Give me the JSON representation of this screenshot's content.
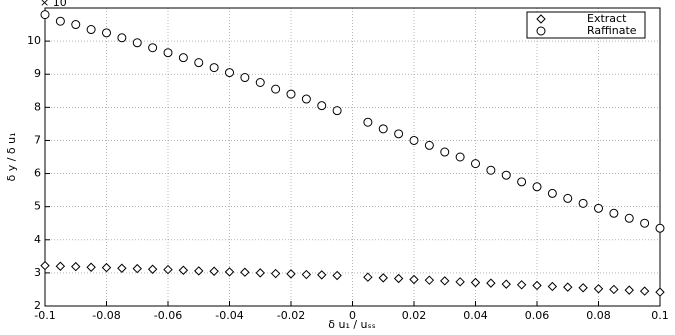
{
  "chart_data": {
    "type": "scatter",
    "multiplier_label": "× 10",
    "xlabel": "δ u₁ / uₛₛ",
    "ylabel": "δ y / δ u₁",
    "x": [
      -0.1,
      -0.095,
      -0.09,
      -0.085,
      -0.08,
      -0.075,
      -0.07,
      -0.065,
      -0.06,
      -0.055,
      -0.05,
      -0.045,
      -0.04,
      -0.035,
      -0.03,
      -0.025,
      -0.02,
      -0.015,
      -0.01,
      -0.005,
      0.005,
      0.01,
      0.015,
      0.02,
      0.025,
      0.03,
      0.035,
      0.04,
      0.045,
      0.05,
      0.055,
      0.06,
      0.065,
      0.07,
      0.075,
      0.08,
      0.085,
      0.09,
      0.095,
      0.1
    ],
    "series": [
      {
        "name": "Extract",
        "marker": "diamond",
        "color": "#000000",
        "values": [
          3.22,
          3.2,
          3.19,
          3.17,
          3.16,
          3.14,
          3.13,
          3.11,
          3.1,
          3.08,
          3.06,
          3.05,
          3.03,
          3.02,
          3.0,
          2.98,
          2.97,
          2.95,
          2.94,
          2.92,
          2.87,
          2.85,
          2.83,
          2.8,
          2.78,
          2.76,
          2.73,
          2.71,
          2.69,
          2.66,
          2.64,
          2.62,
          2.59,
          2.57,
          2.55,
          2.52,
          2.5,
          2.48,
          2.45,
          2.42
        ]
      },
      {
        "name": "Raffinate",
        "marker": "circle",
        "color": "#000000",
        "values": [
          10.8,
          10.6,
          10.5,
          10.35,
          10.25,
          10.1,
          9.95,
          9.8,
          9.65,
          9.5,
          9.35,
          9.2,
          9.05,
          8.9,
          8.75,
          8.55,
          8.4,
          8.25,
          8.05,
          7.9,
          7.55,
          7.35,
          7.2,
          7.0,
          6.85,
          6.65,
          6.5,
          6.3,
          6.1,
          5.95,
          5.75,
          5.6,
          5.4,
          5.25,
          5.1,
          4.95,
          4.8,
          4.65,
          4.5,
          4.35
        ]
      }
    ],
    "xlim": [
      -0.1,
      0.1
    ],
    "xticks": [
      -0.1,
      -0.08,
      -0.06,
      -0.04,
      -0.02,
      0,
      0.02,
      0.04,
      0.06,
      0.08,
      0.1
    ],
    "ylim": [
      2,
      11
    ],
    "yticks": [
      2,
      3,
      4,
      5,
      6,
      7,
      8,
      9,
      10
    ],
    "grid": true,
    "legend": "top-right"
  }
}
